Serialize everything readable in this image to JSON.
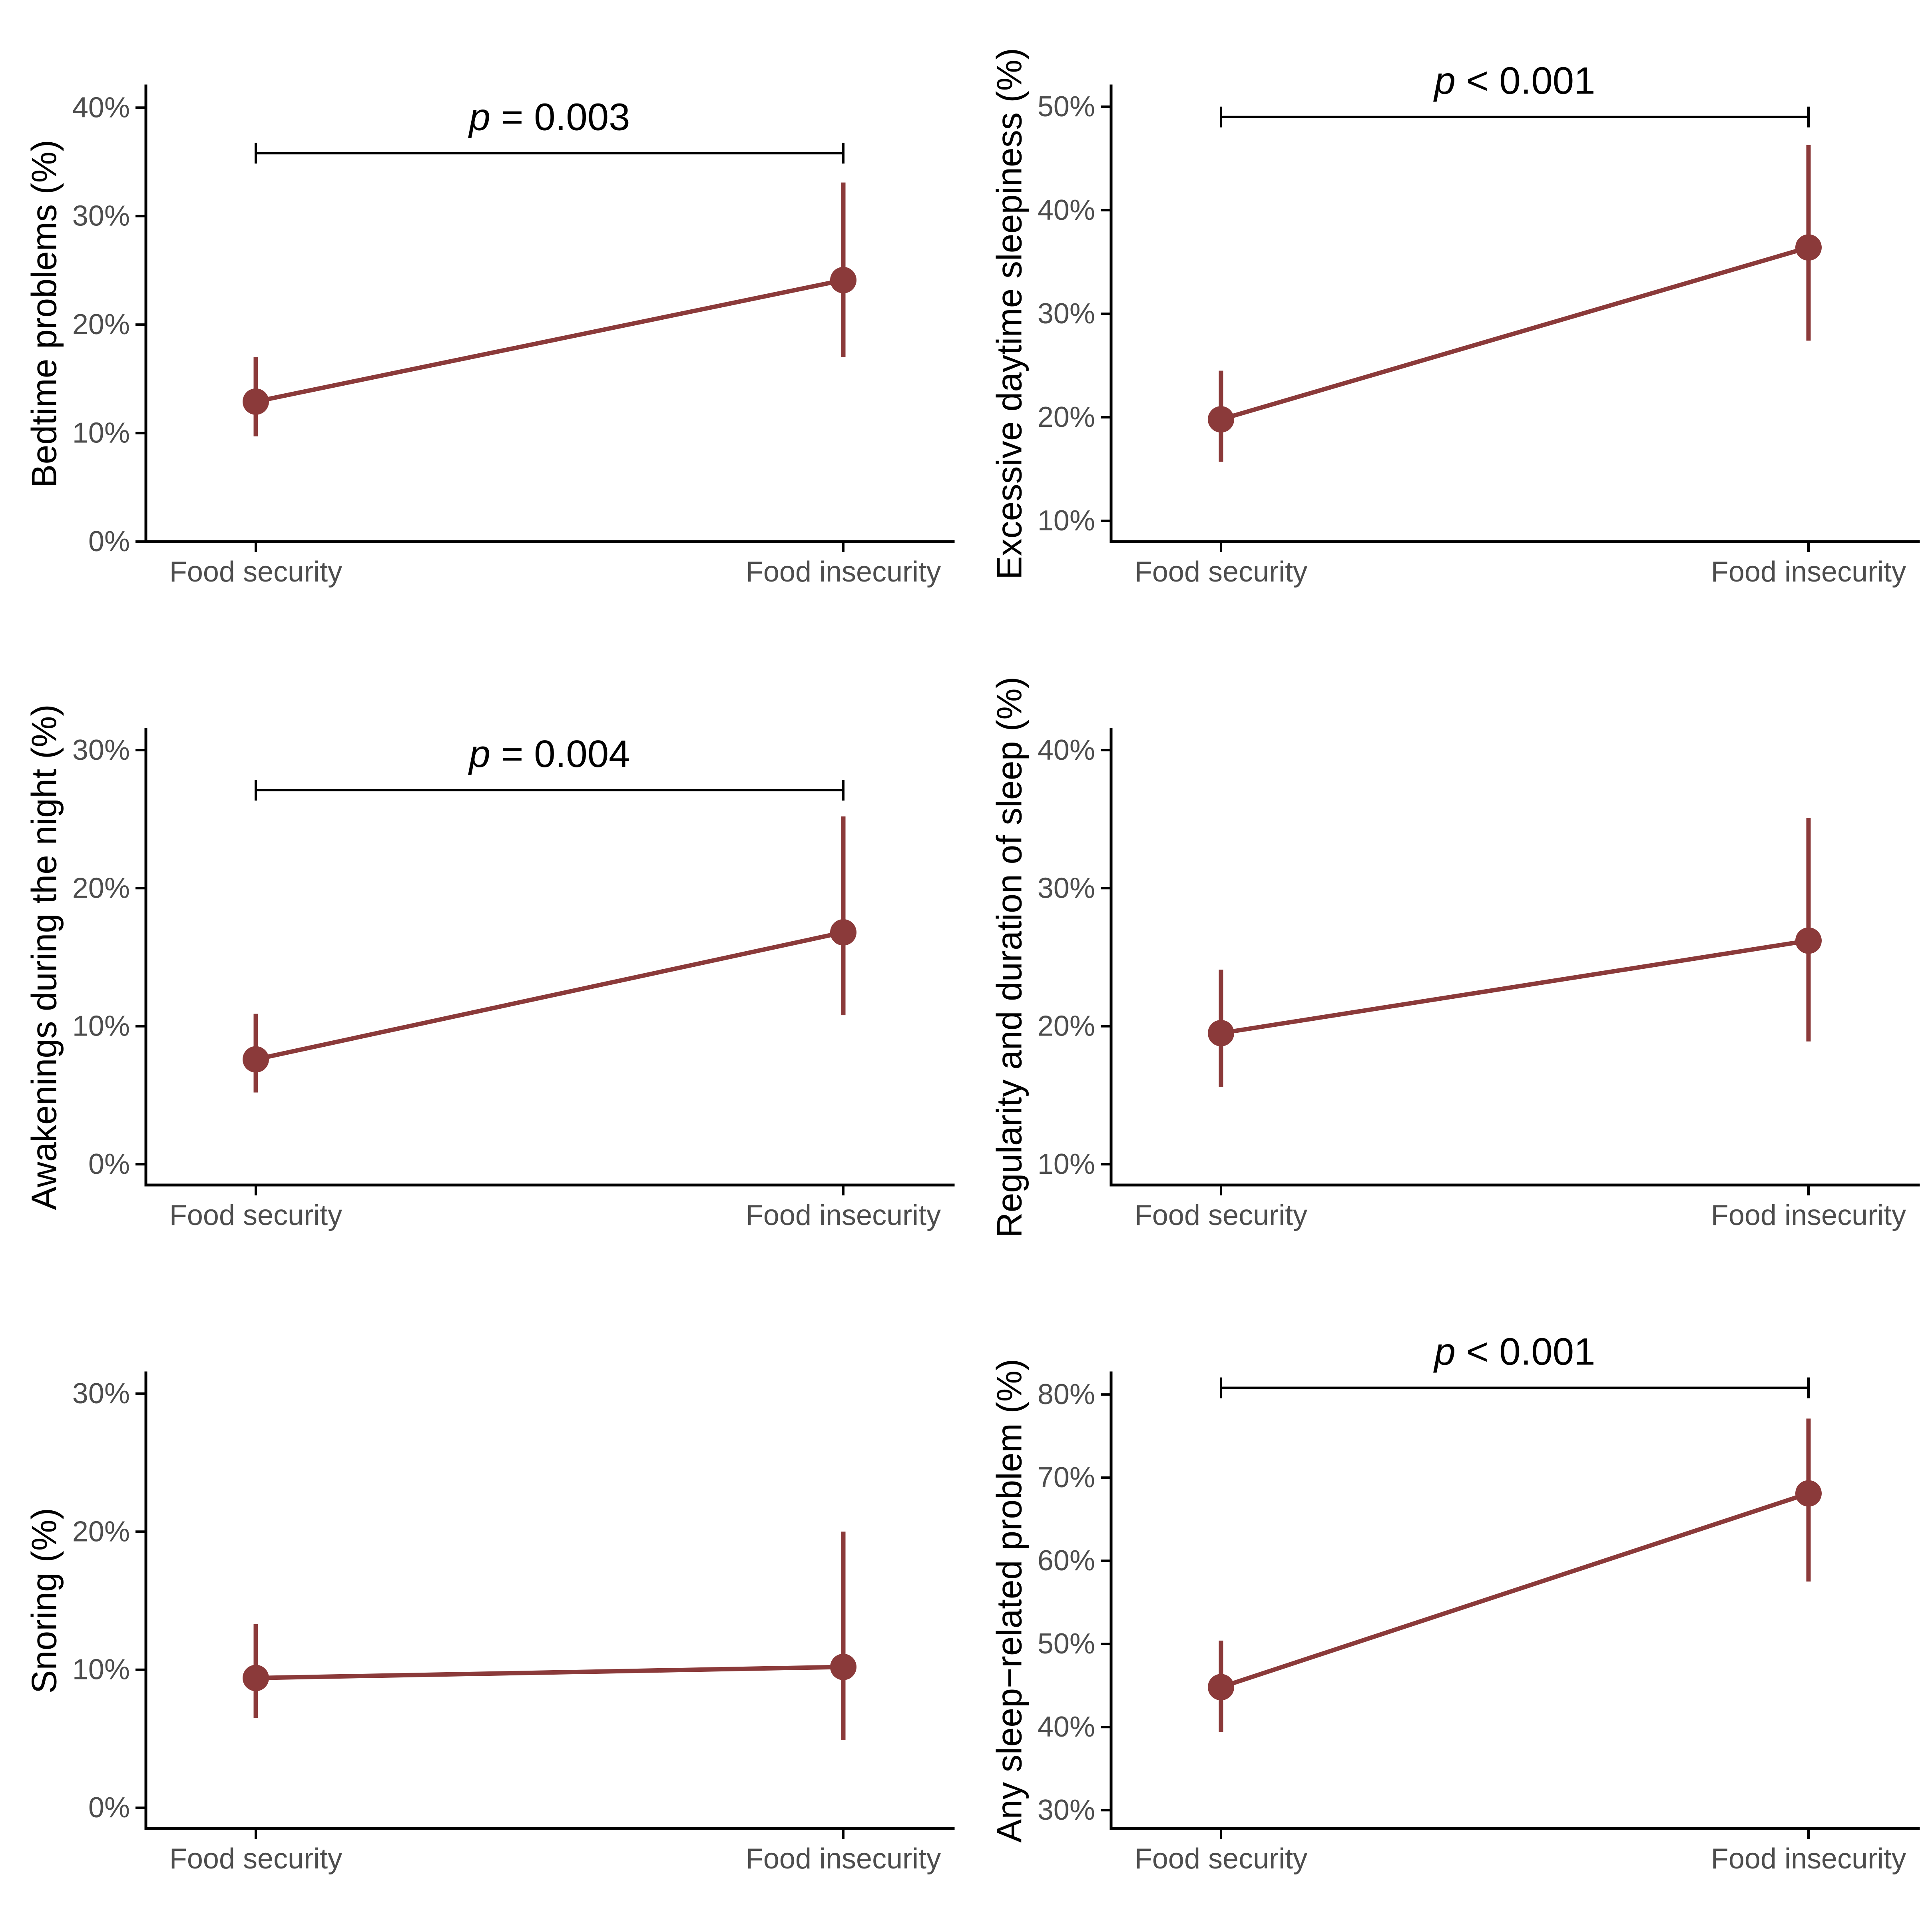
{
  "colors": {
    "series": "#8B3A3A",
    "axis": "#000000",
    "tick_text": "#4d4d4d",
    "background": "#ffffff"
  },
  "chart_data": [
    {
      "type": "line",
      "title": "",
      "xlabel": "",
      "ylabel": "Bedtime problems (%)",
      "categories": [
        "Food security",
        "Food insecurity"
      ],
      "values": [
        12.9,
        24.1
      ],
      "ci_lower": [
        9.7,
        17.0
      ],
      "ci_upper": [
        17.0,
        33.1
      ],
      "ylim": [
        0,
        42
      ],
      "yticks": [
        0,
        10,
        20,
        30,
        40
      ],
      "ytick_labels": [
        "0%",
        "10%",
        "20%",
        "30%",
        "40%"
      ],
      "annotation": {
        "italic": "p",
        "text": " = 0.003",
        "bracket_y": 35.8
      }
    },
    {
      "type": "line",
      "title": "",
      "xlabel": "",
      "ylabel": "Excessive daytime sleepiness (%)",
      "categories": [
        "Food security",
        "Food insecurity"
      ],
      "values": [
        19.8,
        36.4
      ],
      "ci_lower": [
        15.7,
        27.4
      ],
      "ci_upper": [
        24.5,
        46.3
      ],
      "ylim": [
        8,
        52
      ],
      "yticks": [
        10,
        20,
        30,
        40,
        50
      ],
      "ytick_labels": [
        "10%",
        "20%",
        "30%",
        "40%",
        "50%"
      ],
      "annotation": {
        "italic": "p",
        "text": " < 0.001",
        "bracket_y": 49.0
      }
    },
    {
      "type": "line",
      "title": "",
      "xlabel": "",
      "ylabel": "Awakenings during the night (%)",
      "categories": [
        "Food security",
        "Food insecurity"
      ],
      "values": [
        7.6,
        16.8
      ],
      "ci_lower": [
        5.2,
        10.8
      ],
      "ci_upper": [
        10.9,
        25.2
      ],
      "ylim": [
        -1.5,
        31.5
      ],
      "yticks": [
        0,
        10,
        20,
        30
      ],
      "ytick_labels": [
        "0%",
        "10%",
        "20%",
        "30%"
      ],
      "annotation": {
        "italic": "p",
        "text": " = 0.004",
        "bracket_y": 27.1
      }
    },
    {
      "type": "line",
      "title": "",
      "xlabel": "",
      "ylabel": "Regularity and duration of sleep (%)",
      "categories": [
        "Food security",
        "Food insecurity"
      ],
      "values": [
        19.5,
        26.2
      ],
      "ci_lower": [
        15.6,
        18.9
      ],
      "ci_upper": [
        24.1,
        35.1
      ],
      "ylim": [
        8.5,
        41.5
      ],
      "yticks": [
        10,
        20,
        30,
        40
      ],
      "ytick_labels": [
        "10%",
        "20%",
        "30%",
        "40%"
      ],
      "annotation": null
    },
    {
      "type": "line",
      "title": "",
      "xlabel": "",
      "ylabel": "Snoring (%)",
      "categories": [
        "Food security",
        "Food insecurity"
      ],
      "values": [
        9.4,
        10.2
      ],
      "ci_lower": [
        6.5,
        4.9
      ],
      "ci_upper": [
        13.3,
        20.0
      ],
      "ylim": [
        -1.5,
        31.5
      ],
      "yticks": [
        0,
        10,
        20,
        30
      ],
      "ytick_labels": [
        "0%",
        "10%",
        "20%",
        "30%"
      ],
      "annotation": null
    },
    {
      "type": "line",
      "title": "",
      "xlabel": "",
      "ylabel": "Any sleep−related problem (%)",
      "categories": [
        "Food security",
        "Food insecurity"
      ],
      "values": [
        44.8,
        68.1
      ],
      "ci_lower": [
        39.4,
        57.5
      ],
      "ci_upper": [
        50.4,
        77.1
      ],
      "ylim": [
        27.8,
        82.6
      ],
      "yticks": [
        30,
        40,
        50,
        60,
        70,
        80
      ],
      "ytick_labels": [
        "30%",
        "40%",
        "50%",
        "60%",
        "70%",
        "80%"
      ],
      "annotation": {
        "italic": "p",
        "text": " < 0.001",
        "bracket_y": 80.8
      }
    }
  ]
}
